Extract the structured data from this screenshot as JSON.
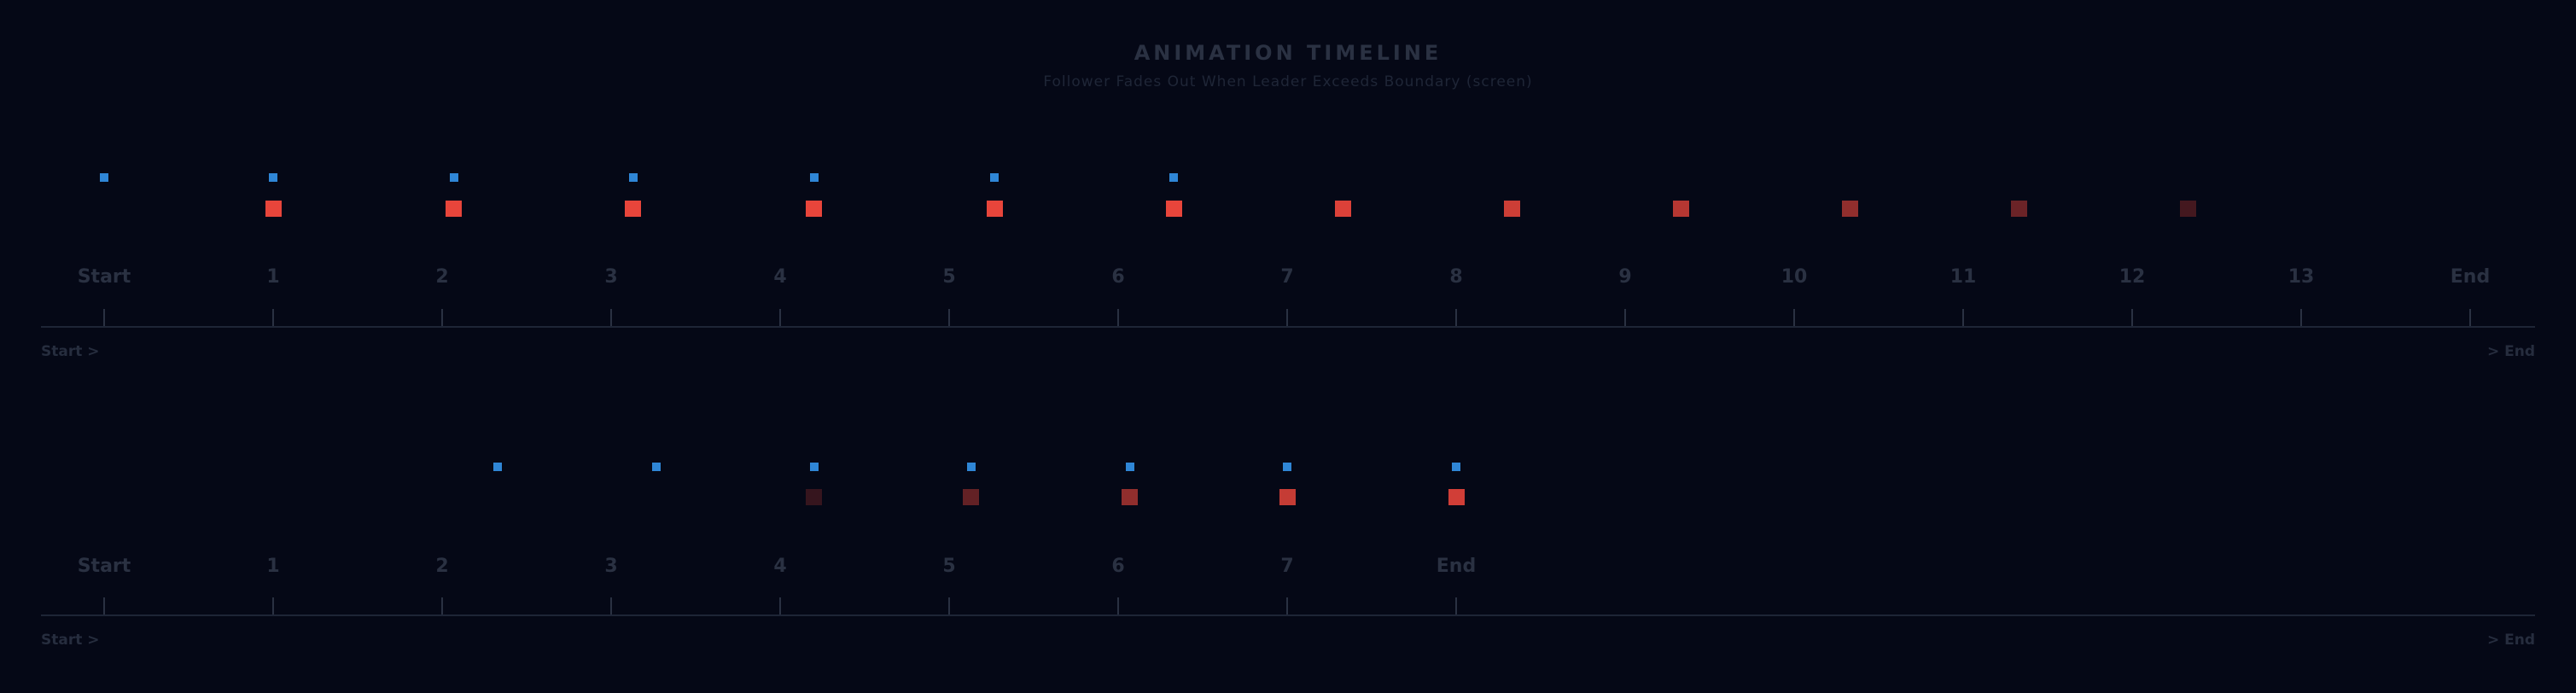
{
  "header": {
    "title": "ANIMATION TIMELINE",
    "subtitle": "Follower Fades Out When Leader Exceeds Boundary (screen)"
  },
  "colors": {
    "background": "#050816",
    "leader": "#2f86d6",
    "follower": "#e8453b",
    "axis": "#1e2536",
    "label": "#2a3142"
  },
  "chart_data": [
    {
      "type": "scatter",
      "x_tick_labels": [
        "Start",
        "1",
        "2",
        "3",
        "4",
        "5",
        "6",
        "7",
        "8",
        "9",
        "10",
        "11",
        "12",
        "13",
        "End"
      ],
      "start_label": "Start >",
      "end_label": "> End",
      "series": [
        {
          "role": "leader",
          "color": "#2f86d6",
          "x": [
            0,
            1,
            2.07,
            3.13,
            4.2,
            5.27,
            6.33
          ],
          "opacity": [
            1,
            1,
            1,
            1,
            1,
            1,
            1
          ]
        },
        {
          "role": "follower",
          "color": "#e8453b",
          "x": [
            1,
            2.07,
            3.13,
            4.2,
            5.27,
            6.33,
            7.33,
            8.33,
            9.33,
            10.33,
            11.33,
            12.33
          ],
          "opacity": [
            1,
            1,
            1,
            1,
            1,
            1,
            0.95,
            0.88,
            0.78,
            0.62,
            0.45,
            0.28
          ]
        }
      ]
    },
    {
      "type": "scatter",
      "x_tick_labels": [
        "Start",
        "1",
        "2",
        "3",
        "4",
        "5",
        "6",
        "7",
        "End"
      ],
      "start_label": "Start >",
      "end_label": "> End",
      "series": [
        {
          "role": "leader",
          "color": "#2f86d6",
          "x": [
            2.33,
            3.27,
            4.2,
            5.13,
            6.07,
            7,
            8
          ],
          "opacity": [
            1,
            1,
            1,
            1,
            1,
            1,
            1
          ]
        },
        {
          "role": "follower",
          "color": "#e8453b",
          "x": [
            4.2,
            5.13,
            6.07,
            7,
            8
          ],
          "opacity": [
            0.22,
            0.42,
            0.62,
            0.85,
            0.9
          ]
        }
      ]
    }
  ]
}
